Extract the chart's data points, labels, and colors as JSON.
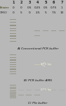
{
  "fig_width": 0.94,
  "fig_height": 1.5,
  "dpi": 100,
  "bg_color": "#b8b8b8",
  "gel_bg_A": "#181810",
  "gel_bg_B": "#101010",
  "gel_bg_C": "#0e0e0e",
  "header_lane_bg": "#c8c8b8",
  "betaine_row_bg": "#e8e830",
  "dmso_row_bg": "#b0b0a0",
  "lane_labels": [
    "1",
    "2",
    "3",
    "4",
    "5",
    "6",
    "7"
  ],
  "betaine_vals": [
    "0",
    "0",
    "0.5",
    "0.25",
    "0.5",
    "0.75",
    "1"
  ],
  "dmso_vals": [
    "0",
    "5",
    "0",
    "2.5",
    "5",
    "7.5",
    "10"
  ],
  "panel_labels": [
    "A) Conventional PCR buffer",
    "B) PCR buffer AMS",
    "C) Pfx buffer"
  ],
  "label_bg": "#d8d8d0",
  "label_text_color": "#111111"
}
